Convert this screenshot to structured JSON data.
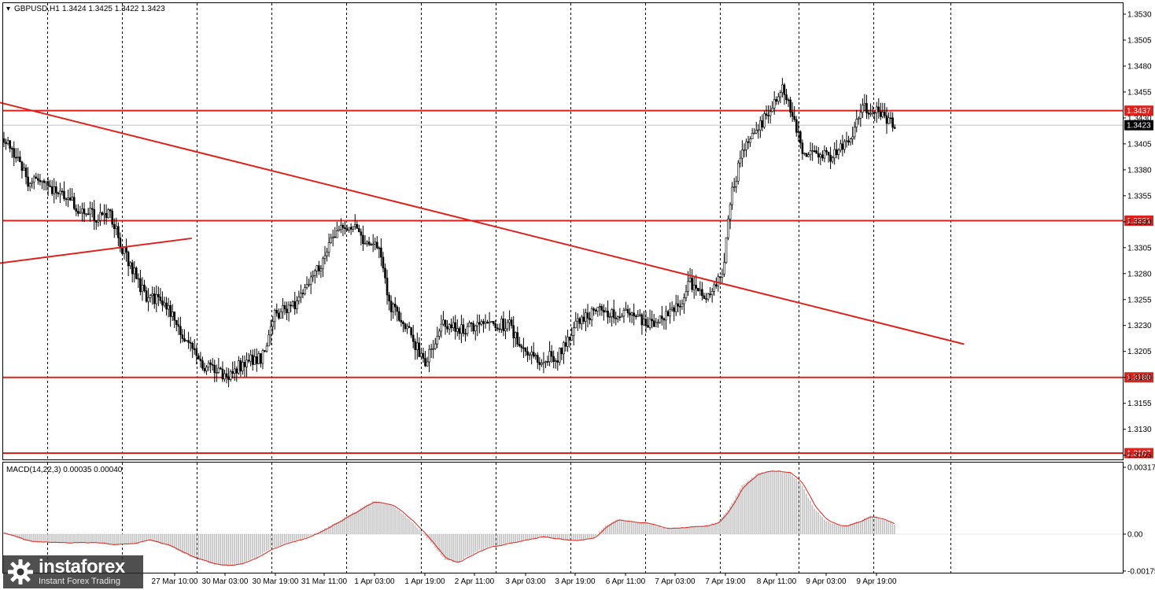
{
  "header": {
    "symbol": "GBPUSD,H1",
    "ohlc": "1.3424 1.3425 1.3422 1.3423",
    "macd_label": "MACD(14,22,3) 0.00035 0.00040"
  },
  "colors": {
    "background": "#ffffff",
    "candle": "#000000",
    "level": "#e0201a",
    "trendline": "#e0201a",
    "grid": "#000000",
    "histogram": "#c0c0c0",
    "signal": "#e0201a",
    "current_price_tag": "#000000"
  },
  "logo": {
    "icon": "instaforex-gear-icon",
    "name": "instaforex",
    "tagline": "Instant Forex Trading"
  },
  "chart_data": [
    {
      "type": "candlestick",
      "title": "GBPUSD,H1",
      "interval": "H1",
      "x_tick_labels": [
        "27 Mar 10:00",
        "30 Mar 03:00",
        "30 Mar 19:00",
        "31 Mar 11:00",
        "1 Apr 03:00",
        "1 Apr 19:00",
        "2 Apr 11:00",
        "3 Apr 03:00",
        "3 Apr 19:00",
        "6 Apr 11:00",
        "7 Apr 03:00",
        "7 Apr 19:00",
        "8 Apr 11:00",
        "9 Apr 03:00",
        "9 Apr 19:00"
      ],
      "y_ticks": [
        "1.3530",
        "1.3505",
        "1.3480",
        "1.3455",
        "1.3430",
        "1.3405",
        "1.3380",
        "1.3355",
        "1.3330",
        "1.3305",
        "1.3280",
        "1.3255",
        "1.3230",
        "1.3205",
        "1.3180",
        "1.3155",
        "1.3130",
        "1.3105"
      ],
      "ylim": [
        1.3092,
        1.354
      ],
      "grid": "vertical-dashed",
      "path_anchors": [
        [
          0,
          1.341
        ],
        [
          12,
          1.337
        ],
        [
          28,
          1.336
        ],
        [
          38,
          1.334
        ],
        [
          46,
          1.3335
        ],
        [
          52,
          1.334
        ],
        [
          60,
          1.33
        ],
        [
          70,
          1.326
        ],
        [
          80,
          1.325
        ],
        [
          90,
          1.322
        ],
        [
          100,
          1.319
        ],
        [
          112,
          1.3182
        ],
        [
          120,
          1.3195
        ],
        [
          128,
          1.3198
        ],
        [
          135,
          1.324
        ],
        [
          146,
          1.325
        ],
        [
          158,
          1.329
        ],
        [
          168,
          1.333
        ],
        [
          174,
          1.3325
        ],
        [
          180,
          1.3305
        ],
        [
          186,
          1.331
        ],
        [
          192,
          1.325
        ],
        [
          200,
          1.323
        ],
        [
          210,
          1.3195
        ],
        [
          218,
          1.323
        ],
        [
          228,
          1.3225
        ],
        [
          240,
          1.3232
        ],
        [
          252,
          1.323
        ],
        [
          258,
          1.321
        ],
        [
          266,
          1.3198
        ],
        [
          276,
          1.32
        ],
        [
          286,
          1.3235
        ],
        [
          296,
          1.3245
        ],
        [
          312,
          1.324
        ],
        [
          324,
          1.323
        ],
        [
          336,
          1.3248
        ],
        [
          342,
          1.3272
        ],
        [
          350,
          1.326
        ],
        [
          358,
          1.3278
        ],
        [
          362,
          1.335
        ],
        [
          368,
          1.34
        ],
        [
          376,
          1.342
        ],
        [
          382,
          1.344
        ],
        [
          388,
          1.346
        ],
        [
          392,
          1.344
        ],
        [
          398,
          1.34
        ],
        [
          404,
          1.3395
        ],
        [
          412,
          1.3393
        ],
        [
          418,
          1.3402
        ],
        [
          424,
          1.342
        ],
        [
          428,
          1.3438
        ],
        [
          432,
          1.344
        ],
        [
          438,
          1.3432
        ],
        [
          444,
          1.3424
        ]
      ],
      "y_levels": [
        {
          "value": 1.3437,
          "label": "1.3437"
        },
        {
          "value": 1.3331,
          "label": "1.3331"
        },
        {
          "value": 1.318,
          "label": "1.3180"
        },
        {
          "value": 1.3107,
          "label": "1.3107"
        }
      ],
      "current_price": {
        "value": 1.3423,
        "label": "1.3423"
      },
      "trendlines": [
        {
          "from": [
            -2,
            1.3445
          ],
          "to": [
            479,
            1.3212
          ]
        },
        {
          "from": [
            -2,
            1.329
          ],
          "to": [
            94,
            1.3314
          ]
        }
      ]
    },
    {
      "type": "macd",
      "title": "MACD(14,22,3) 0.00035 0.00040",
      "values_label": "MACD(14,22,3)",
      "macd": 0.00035,
      "signal": 0.0004,
      "y_ticks": [
        "0.00317",
        "0.00",
        "-0.00175"
      ],
      "ylim": [
        -0.00205,
        0.0034
      ],
      "histogram_anchors": [
        [
          0,
          5e-05
        ],
        [
          12,
          -0.00035
        ],
        [
          28,
          -0.0004
        ],
        [
          44,
          -0.0004
        ],
        [
          54,
          -0.0005
        ],
        [
          64,
          -0.00045
        ],
        [
          72,
          -0.00025
        ],
        [
          82,
          -0.00055
        ],
        [
          94,
          -0.0011
        ],
        [
          104,
          -0.0014
        ],
        [
          112,
          -0.0015
        ],
        [
          118,
          -0.0014
        ],
        [
          126,
          -0.0011
        ],
        [
          134,
          -0.00065
        ],
        [
          142,
          -0.0004
        ],
        [
          150,
          -0.0002
        ],
        [
          158,
          0.00015
        ],
        [
          172,
          0.0009
        ],
        [
          184,
          0.00155
        ],
        [
          194,
          0.00135
        ],
        [
          204,
          0.00055
        ],
        [
          212,
          -0.0003
        ],
        [
          220,
          -0.0012
        ],
        [
          226,
          -0.00135
        ],
        [
          232,
          -0.001
        ],
        [
          240,
          -0.00065
        ],
        [
          256,
          -0.00035
        ],
        [
          268,
          -0.0001
        ],
        [
          278,
          -0.00025
        ],
        [
          286,
          -0.0003
        ],
        [
          294,
          -0.00015
        ],
        [
          300,
          0.0004
        ],
        [
          306,
          0.0007
        ],
        [
          312,
          0.0006
        ],
        [
          322,
          0.0005
        ],
        [
          330,
          0.00025
        ],
        [
          336,
          0.0003
        ],
        [
          342,
          0.00035
        ],
        [
          350,
          0.0004
        ],
        [
          356,
          0.00055
        ],
        [
          362,
          0.0013
        ],
        [
          368,
          0.0023
        ],
        [
          376,
          0.0029
        ],
        [
          384,
          0.003
        ],
        [
          392,
          0.0029
        ],
        [
          398,
          0.0023
        ],
        [
          404,
          0.0012
        ],
        [
          410,
          0.0006
        ],
        [
          418,
          0.00035
        ],
        [
          426,
          0.0006
        ],
        [
          432,
          0.00085
        ],
        [
          438,
          0.0007
        ],
        [
          444,
          0.00045
        ]
      ]
    }
  ]
}
